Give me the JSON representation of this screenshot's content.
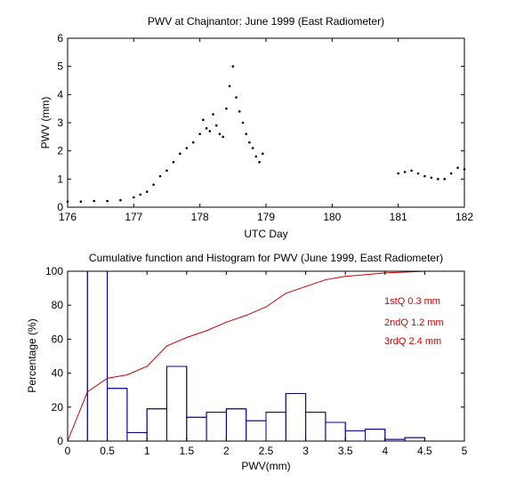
{
  "chart_data": [
    {
      "type": "scatter",
      "title": "PWV at Chajnantor: June 1999 (East Radiometer)",
      "xlabel": "UTC Day",
      "ylabel": "PWV (mm)",
      "xlim": [
        176,
        182
      ],
      "ylim": [
        0,
        6
      ],
      "xticks": [
        "176",
        "177",
        "178",
        "179",
        "180",
        "181",
        "182"
      ],
      "yticks": [
        "0",
        "1",
        "2",
        "3",
        "4",
        "5",
        "6"
      ],
      "grid": false,
      "legend": "none",
      "marker_color": "#000000",
      "series": [
        {
          "x": [
            176.0,
            176.2,
            176.4,
            176.6,
            176.8,
            177.0,
            177.1,
            177.2,
            177.3,
            177.4,
            177.5,
            177.6,
            177.7,
            177.8,
            177.9,
            178.0,
            178.05,
            178.1,
            178.15,
            178.2,
            178.25,
            178.3,
            178.35,
            178.4,
            178.45,
            178.5,
            178.55,
            178.6,
            178.65,
            178.7,
            178.75,
            178.8,
            178.85,
            178.9,
            178.95,
            181.0,
            181.1,
            181.2,
            181.3,
            181.4,
            181.5,
            181.6,
            181.7,
            181.8,
            181.9,
            182.0
          ],
          "y": [
            0.2,
            0.2,
            0.22,
            0.22,
            0.25,
            0.35,
            0.45,
            0.55,
            0.8,
            1.1,
            1.3,
            1.6,
            1.9,
            2.1,
            2.3,
            2.6,
            3.1,
            2.8,
            2.7,
            3.3,
            2.9,
            2.6,
            2.5,
            3.5,
            4.3,
            5.0,
            3.9,
            3.4,
            3.0,
            2.6,
            2.3,
            2.1,
            1.8,
            1.6,
            1.9,
            1.2,
            1.25,
            1.3,
            1.2,
            1.1,
            1.05,
            1.0,
            1.0,
            1.2,
            1.4,
            1.35
          ]
        }
      ]
    },
    {
      "type": "bar",
      "title": "Cumulative function and Histogram for PWV (June 1999, East Radiometer)",
      "xlabel": "PWV(mm)",
      "ylabel": "Percentage (%)",
      "xlim": [
        0,
        5
      ],
      "ylim": [
        0,
        100
      ],
      "xticks": [
        "0",
        "0.5",
        "1",
        "1.5",
        "2",
        "2.5",
        "3",
        "3.5",
        "4",
        "4.5",
        "5"
      ],
      "yticks": [
        "0",
        "20",
        "40",
        "60",
        "80",
        "100"
      ],
      "grid": false,
      "legend": "none",
      "histogram": {
        "color": "#00008b",
        "bin_edges": [
          0,
          0.25,
          0.5,
          0.75,
          1.0,
          1.25,
          1.5,
          1.75,
          2.0,
          2.25,
          2.5,
          2.75,
          3.0,
          3.25,
          3.5,
          3.75,
          4.0,
          4.25,
          4.5,
          4.75,
          5.0
        ],
        "values": [
          0,
          100,
          31,
          5,
          19,
          44,
          14,
          17,
          19,
          12,
          17,
          28,
          17,
          11,
          6,
          7,
          1,
          2,
          0,
          0
        ]
      },
      "cumulative": {
        "color": "#cc0000",
        "x": [
          0,
          0.25,
          0.5,
          0.75,
          1.0,
          1.25,
          1.5,
          1.75,
          2.0,
          2.25,
          2.5,
          2.75,
          3.0,
          3.25,
          3.5,
          3.75,
          4.0,
          4.25,
          4.5,
          4.75,
          5.0
        ],
        "y": [
          0,
          29,
          37,
          39,
          44,
          56,
          61,
          65,
          70,
          74,
          79,
          87,
          91,
          95,
          97,
          98,
          99,
          99.5,
          100,
          100,
          100
        ]
      },
      "annotations": [
        "1stQ 0.3 mm",
        "2ndQ 1.2 mm",
        "3rdQ 2.4 mm"
      ]
    }
  ]
}
